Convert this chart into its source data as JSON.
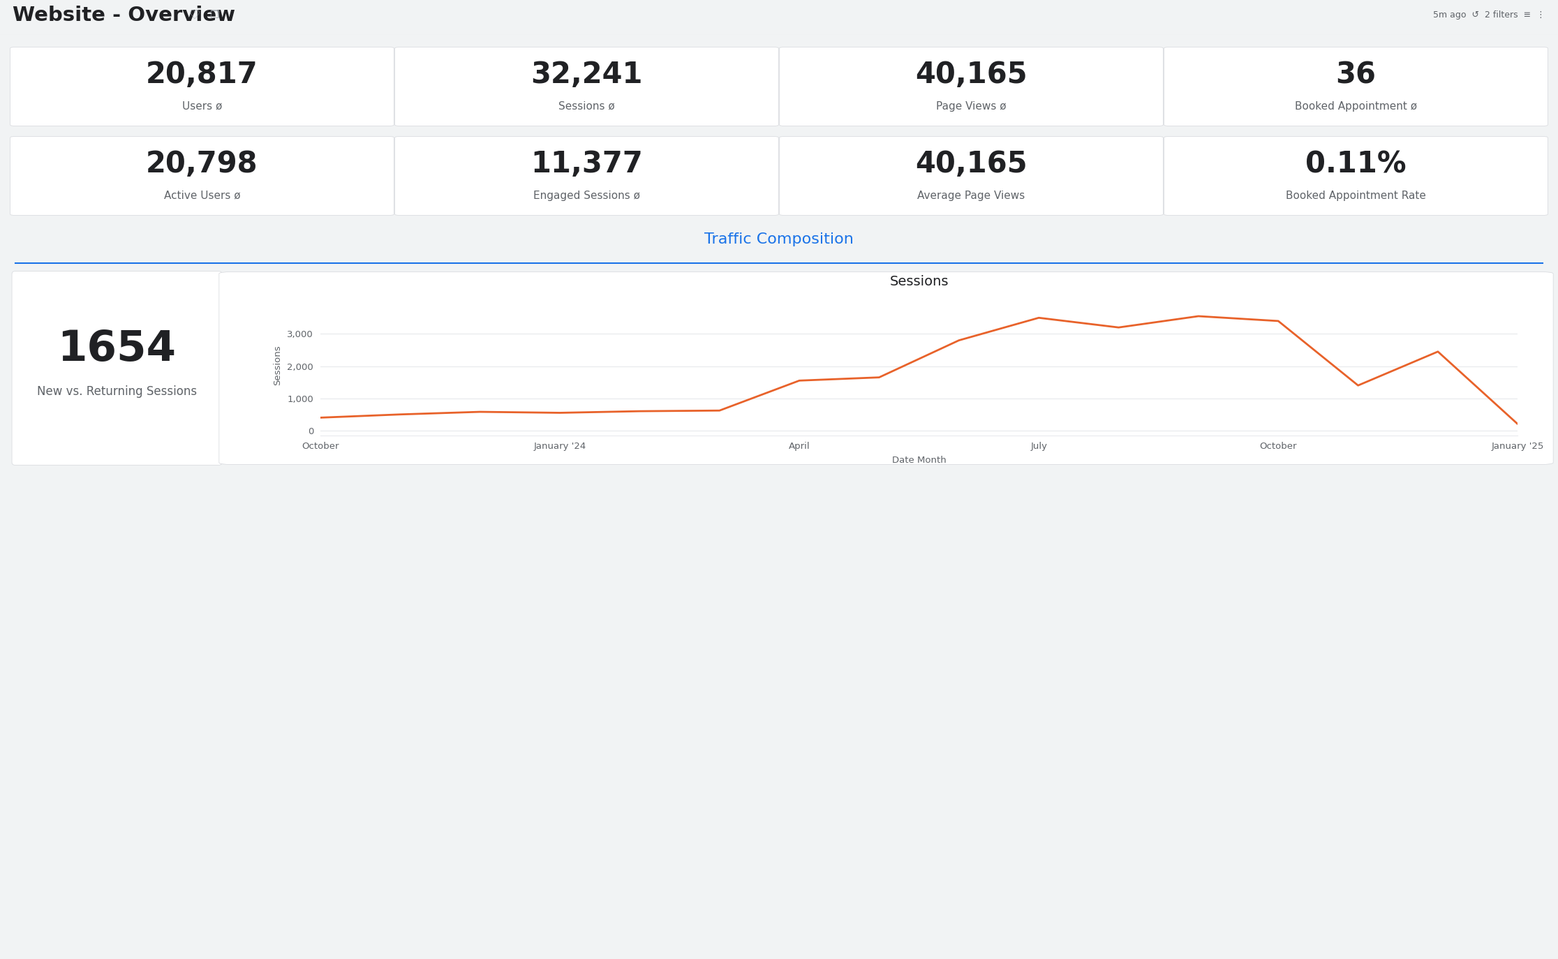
{
  "title": "Website - Overview",
  "metrics_row1": [
    {
      "value": "20,817",
      "label": "Users ø"
    },
    {
      "value": "32,241",
      "label": "Sessions ø"
    },
    {
      "value": "40,165",
      "label": "Page Views ø"
    },
    {
      "value": "36",
      "label": "Booked Appointment ø"
    }
  ],
  "metrics_row2": [
    {
      "value": "20,798",
      "label": "Active Users ø"
    },
    {
      "value": "11,377",
      "label": "Engaged Sessions ø"
    },
    {
      "value": "40,165",
      "label": "Average Page Views"
    },
    {
      "value": "0.11%",
      "label": "Booked Appointment Rate"
    }
  ],
  "section_title": "Traffic Composition",
  "section_title_color": "#1a73e8",
  "divider_color": "#1a73e8",
  "left_panel_value": "1654",
  "left_panel_label": "New vs. Returning Sessions",
  "chart_title": "Sessions",
  "chart_xlabel": "Date Month",
  "chart_ylabel": "Sessions",
  "chart_line_color": "#e8622a",
  "chart_months": [
    "October",
    "January '24",
    "April",
    "July",
    "October",
    "January '25"
  ],
  "chart_data_x": [
    0,
    1,
    2,
    3,
    4,
    5,
    6,
    7,
    8,
    9,
    10,
    11,
    12,
    13,
    14,
    15
  ],
  "chart_data_y": [
    400,
    500,
    580,
    550,
    600,
    620,
    1550,
    1650,
    2800,
    3500,
    3200,
    3550,
    3400,
    1400,
    2450,
    200
  ],
  "chart_yticks": [
    0,
    1000,
    2000,
    3000
  ],
  "chart_ylim": [
    -150,
    4200
  ],
  "bg_color": "#f1f3f4",
  "header_bg": "#ffffff",
  "card_bg": "#ffffff",
  "card_border": "#dadce0",
  "text_dark": "#202124",
  "text_gray": "#5f6368",
  "value_fontsize": 30,
  "label_fontsize": 11
}
